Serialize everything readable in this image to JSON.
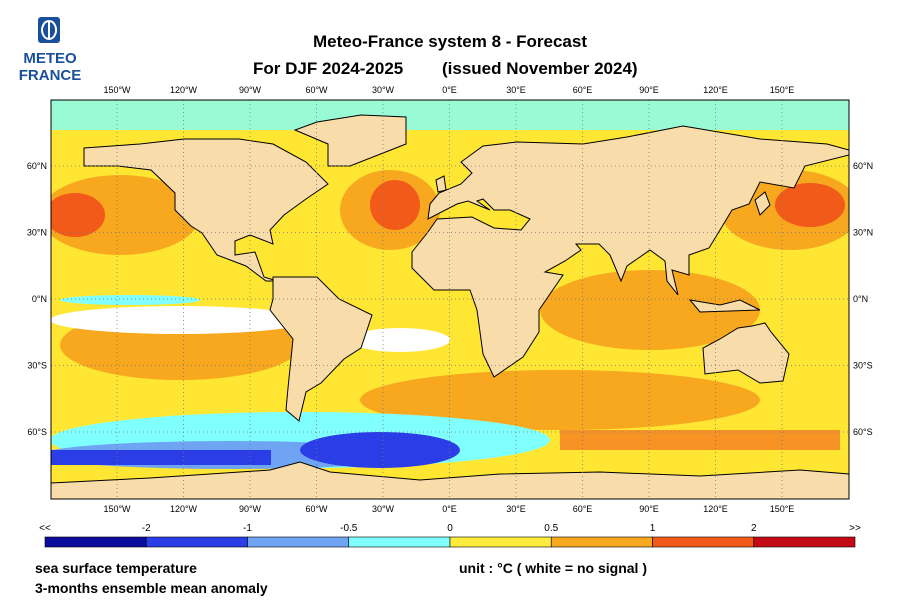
{
  "logo": {
    "line1": "METEO",
    "line2": "FRANCE"
  },
  "title": {
    "line1": "Meteo-France system 8  -  Forecast",
    "line2": "For DJF 2024-2025",
    "line2b": "(issued November 2024)"
  },
  "map": {
    "lon_labels": [
      "150°W",
      "120°W",
      "90°W",
      "60°W",
      "30°W",
      "0°E",
      "30°E",
      "60°E",
      "90°E",
      "120°E",
      "150°E"
    ],
    "lat_labels": [
      "60°N",
      "30°N",
      "0°N",
      "30°S",
      "60°S"
    ]
  },
  "colorbar": {
    "labels": [
      "<<",
      "-2",
      "-1",
      "-0.5",
      "0",
      "0.5",
      "1",
      "2",
      ">>"
    ],
    "colors": [
      "#0c0c9c",
      "#2b3de6",
      "#6ea4f2",
      "#80ffff",
      "#ffeb3b",
      "#f7a81e",
      "#f25a1a",
      "#c40a14"
    ]
  },
  "footer": {
    "left1": "sea surface temperature",
    "left2": "3-months ensemble mean anomaly",
    "right": "unit : °C  ( white = no signal )"
  }
}
